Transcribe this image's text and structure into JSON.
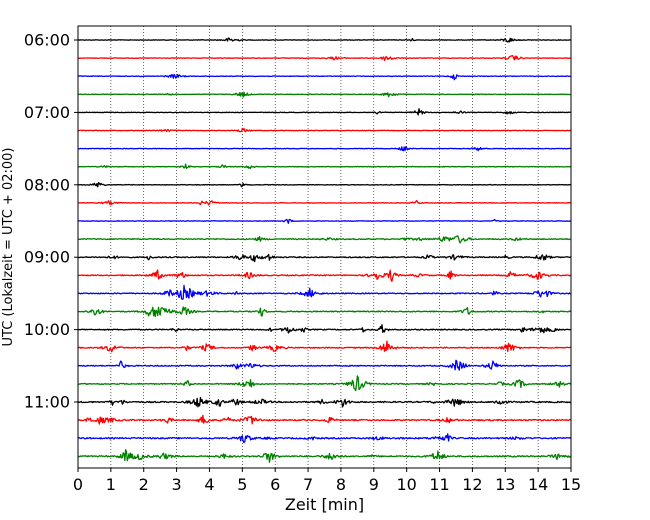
{
  "chart_data": {
    "type": "line",
    "xlabel": "Zeit  [min]",
    "ylabel": "UTC (Lokalzeit = UTC + 02:00)",
    "xlim": [
      0,
      15
    ],
    "x_ticks": [
      "0",
      "1",
      "2",
      "3",
      "4",
      "5",
      "6",
      "7",
      "8",
      "9",
      "10",
      "11",
      "12",
      "13",
      "14",
      "15"
    ],
    "y_ticks": [
      {
        "label": "06:00",
        "row": 0
      },
      {
        "label": "07:00",
        "row": 4
      },
      {
        "label": "08:00",
        "row": 8
      },
      {
        "label": "09:00",
        "row": 12
      },
      {
        "label": "10:00",
        "row": 16
      },
      {
        "label": "11:00",
        "row": 20
      }
    ],
    "rows_per_hour": 4,
    "minutes_per_row": 15,
    "grid": "vertical dotted, every minute",
    "color_cycle": [
      "#000000",
      "#ff0000",
      "#0000ff",
      "#008000"
    ],
    "series": [
      {
        "start": "06:00",
        "color": "#000000"
      },
      {
        "start": "06:15",
        "color": "#ff0000"
      },
      {
        "start": "06:30",
        "color": "#0000ff"
      },
      {
        "start": "06:45",
        "color": "#008000"
      },
      {
        "start": "07:00",
        "color": "#000000"
      },
      {
        "start": "07:15",
        "color": "#ff0000"
      },
      {
        "start": "07:30",
        "color": "#0000ff"
      },
      {
        "start": "07:45",
        "color": "#008000"
      },
      {
        "start": "08:00",
        "color": "#000000"
      },
      {
        "start": "08:15",
        "color": "#ff0000"
      },
      {
        "start": "08:30",
        "color": "#0000ff"
      },
      {
        "start": "08:45",
        "color": "#008000"
      },
      {
        "start": "09:00",
        "color": "#000000"
      },
      {
        "start": "09:15",
        "color": "#ff0000"
      },
      {
        "start": "09:30",
        "color": "#0000ff"
      },
      {
        "start": "09:45",
        "color": "#008000"
      },
      {
        "start": "10:00",
        "color": "#000000"
      },
      {
        "start": "10:15",
        "color": "#ff0000"
      },
      {
        "start": "10:30",
        "color": "#0000ff"
      },
      {
        "start": "10:45",
        "color": "#008000"
      },
      {
        "start": "11:00",
        "color": "#000000"
      },
      {
        "start": "11:15",
        "color": "#ff0000"
      },
      {
        "start": "11:30",
        "color": "#0000ff"
      },
      {
        "start": "11:45",
        "color": "#008000"
      }
    ]
  }
}
